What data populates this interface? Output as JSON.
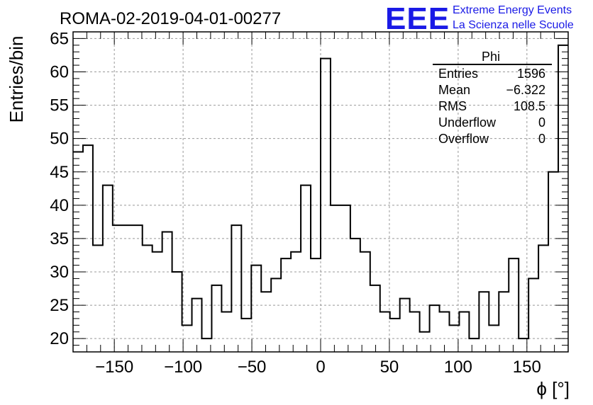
{
  "chart_data": {
    "type": "bar",
    "style": "step-histogram",
    "title": "ROMA-02-2019-04-01-00277",
    "xlabel": "ϕ [°]",
    "ylabel": "Entries/bin",
    "xlim": [
      -180,
      180
    ],
    "ylim": [
      18,
      66
    ],
    "xticks": [
      -150,
      -100,
      -50,
      0,
      50,
      100,
      150
    ],
    "yticks": [
      20,
      25,
      30,
      35,
      40,
      45,
      50,
      55,
      60,
      65
    ],
    "grid": true,
    "bin_width": 7.2,
    "bin_edges_start": -180,
    "values": [
      48,
      49,
      34,
      43,
      37,
      37,
      37,
      34,
      33,
      36,
      30,
      22,
      26,
      20,
      28,
      24,
      37,
      23,
      31,
      27,
      29,
      32,
      33,
      43,
      32,
      62,
      40,
      40,
      35,
      33,
      28,
      24,
      23,
      26,
      24,
      21,
      25,
      24,
      22,
      24,
      20,
      27,
      22,
      27,
      32,
      20,
      29,
      34,
      45,
      64
    ]
  },
  "stats_box": {
    "name": "Phi",
    "rows": [
      {
        "label": "Entries",
        "value": "1596"
      },
      {
        "label": "Mean",
        "value": "−6.322"
      },
      {
        "label": "RMS",
        "value": "108.5"
      },
      {
        "label": "Underflow",
        "value": "0"
      },
      {
        "label": "Overflow",
        "value": "0"
      }
    ]
  },
  "logo": {
    "text": "EEE",
    "line1": "Extreme Energy Events",
    "line2": "La Scienza nelle Scuole",
    "color": "#1a1ae6"
  }
}
